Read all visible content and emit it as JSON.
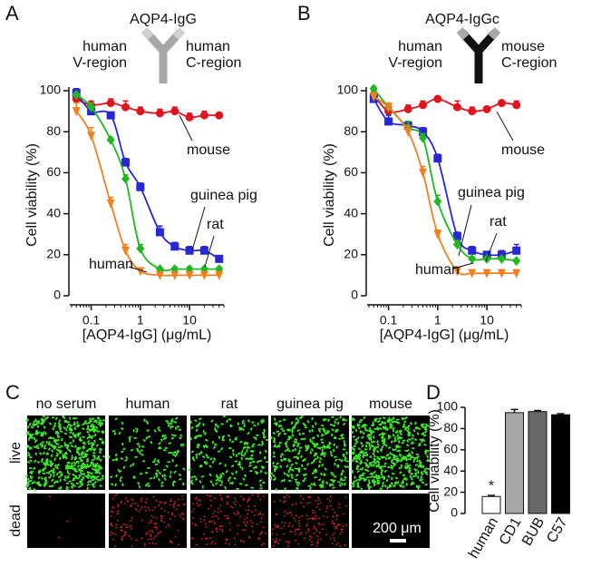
{
  "panel_letters": [
    "A",
    "B",
    "C",
    "D"
  ],
  "chart_data": [
    {
      "type": "scatter",
      "title": "AQP4-IgG",
      "antibody_labels": [
        "human",
        "V-region",
        "human",
        "C-region"
      ],
      "xlabel": "[AQP4-IgG] (μg/mL)",
      "ylabel": "Cell viability (%)",
      "xscale": "log",
      "xlim": [
        0.04,
        50
      ],
      "xticks": [
        0.1,
        1,
        10
      ],
      "ylim": [
        0,
        100
      ],
      "yticks": [
        0,
        20,
        40,
        60,
        80,
        100
      ],
      "x": [
        0.05,
        0.1,
        0.25,
        0.5,
        1,
        2.5,
        5,
        10,
        20,
        40
      ],
      "series": [
        {
          "name": "mouse",
          "color": "#e0141e",
          "marker": "circle",
          "values": [
            96,
            93,
            94,
            92,
            90,
            89,
            90,
            87,
            88,
            88
          ],
          "errors": [
            2,
            2,
            2,
            3,
            2,
            2,
            2,
            2,
            2,
            1
          ]
        },
        {
          "name": "guinea pig",
          "color": "#2828d0",
          "marker": "square",
          "values": [
            99,
            90,
            88,
            65,
            53,
            31,
            24,
            22,
            22,
            18
          ],
          "errors": [
            2,
            2,
            1,
            2,
            2,
            3,
            2,
            2,
            2,
            1
          ]
        },
        {
          "name": "rat",
          "color": "#1fb81f",
          "marker": "diamond",
          "values": [
            98,
            92,
            76,
            57,
            23,
            13,
            13,
            13,
            13,
            13
          ],
          "errors": [
            1,
            2,
            1,
            2,
            2,
            1,
            1,
            1,
            1,
            1
          ]
        },
        {
          "name": "human",
          "color": "#f08020",
          "marker": "triangle",
          "values": [
            90,
            78,
            45,
            22,
            12,
            10,
            10,
            10,
            10,
            10
          ],
          "errors": [
            4,
            4,
            3,
            3,
            1,
            1,
            1,
            1,
            1,
            1
          ]
        }
      ]
    },
    {
      "type": "scatter",
      "title": "AQP4-IgGc",
      "antibody_labels": [
        "human",
        "V-region",
        "mouse",
        "C-region"
      ],
      "xlabel": "[AQP4-IgG] (μg/mL)",
      "ylabel": "Cell viability (%)",
      "xscale": "log",
      "xlim": [
        0.04,
        50
      ],
      "xticks": [
        0.1,
        1,
        10
      ],
      "ylim": [
        0,
        100
      ],
      "yticks": [
        0,
        20,
        40,
        60,
        80,
        100
      ],
      "x": [
        0.05,
        0.1,
        0.25,
        0.5,
        1,
        2.5,
        5,
        10,
        20,
        40
      ],
      "series": [
        {
          "name": "mouse",
          "color": "#e0141e",
          "marker": "circle",
          "values": [
            98,
            90,
            91,
            93,
            96,
            92,
            90,
            91,
            94,
            93
          ],
          "errors": [
            2,
            2,
            2,
            2,
            1,
            3,
            2,
            1,
            1,
            2
          ]
        },
        {
          "name": "guinea pig",
          "color": "#2828d0",
          "marker": "square",
          "values": [
            96,
            85,
            83,
            80,
            67,
            29,
            22,
            20,
            20,
            22
          ],
          "errors": [
            2,
            3,
            2,
            2,
            2,
            2,
            2,
            1,
            2,
            3
          ]
        },
        {
          "name": "rat",
          "color": "#1fb81f",
          "marker": "diamond",
          "values": [
            101,
            92,
            82,
            77,
            46,
            25,
            18,
            18,
            18,
            17
          ],
          "errors": [
            1,
            2,
            3,
            2,
            3,
            2,
            1,
            1,
            1,
            1
          ]
        },
        {
          "name": "human",
          "color": "#f08020",
          "marker": "triangle",
          "values": [
            97,
            92,
            80,
            60,
            30,
            12,
            11,
            11,
            11,
            11
          ],
          "errors": [
            2,
            2,
            3,
            3,
            2,
            1,
            1,
            1,
            1,
            1
          ]
        }
      ]
    },
    {
      "type": "bar",
      "ylabel": "Cell viability (%)",
      "annotation": "*",
      "categories": [
        "human",
        "CD1",
        "BUB",
        "C57"
      ],
      "values": [
        16,
        95,
        96,
        93
      ],
      "errors": [
        1,
        3,
        1,
        1
      ],
      "colors": [
        "#ffffff",
        "#a8a8a8",
        "#686868",
        "#000000"
      ],
      "ylim": [
        0,
        100
      ],
      "yticks": [
        0,
        20,
        40,
        60,
        80,
        100
      ]
    }
  ],
  "panel_c": {
    "columns": [
      "no serum",
      "human",
      "rat",
      "guinea pig",
      "mouse"
    ],
    "rows": [
      "live",
      "dead"
    ],
    "scale_bar": "200 μm"
  }
}
